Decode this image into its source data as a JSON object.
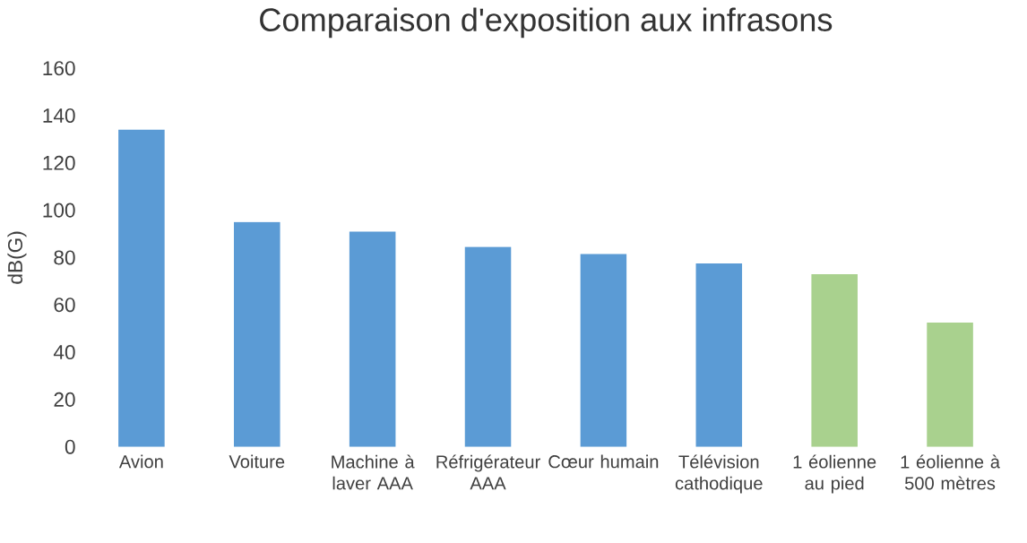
{
  "chart_data": {
    "type": "bar",
    "title": "Comparaison d'exposition aux infrasons",
    "ylabel": "dB(G)",
    "categories": [
      "Avion",
      "Voiture",
      "Machine à laver AAA",
      "Réfrigérateur AAA",
      "Cœur humain",
      "Télévision cathodique",
      "1 éolienne au pied",
      "1 éolienne à 500 mètres"
    ],
    "values": [
      134,
      95,
      91,
      84.5,
      81.5,
      77.5,
      73,
      52.5
    ],
    "colors": [
      "#5b9bd5",
      "#5b9bd5",
      "#5b9bd5",
      "#5b9bd5",
      "#5b9bd5",
      "#5b9bd5",
      "#a9d18e",
      "#a9d18e"
    ],
    "ylim": [
      0,
      160
    ],
    "yticks": [
      0,
      20,
      40,
      60,
      80,
      100,
      120,
      140,
      160
    ],
    "grid": false
  }
}
